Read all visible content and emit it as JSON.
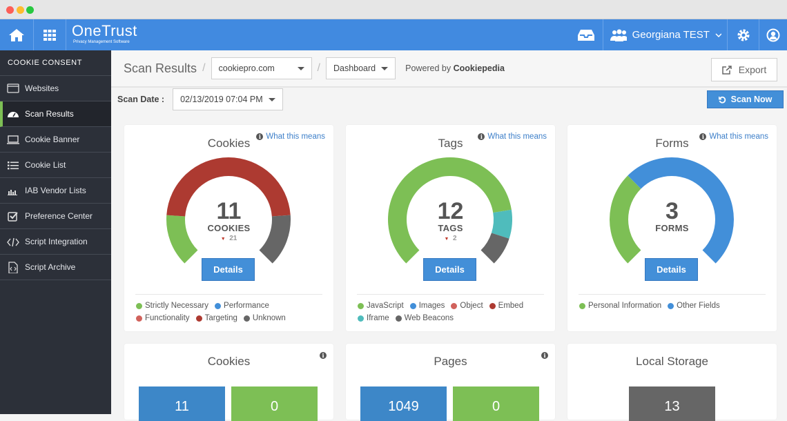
{
  "header": {
    "brand": "OneTrust",
    "brand_sub": "Privacy Management Software",
    "user": "Georgiana TEST"
  },
  "sidebar": {
    "section": "COOKIE CONSENT",
    "items": [
      {
        "label": "Websites",
        "icon": "browser-window-icon"
      },
      {
        "label": "Scan Results",
        "icon": "dashboard-gauge-icon",
        "active": true
      },
      {
        "label": "Cookie Banner",
        "icon": "laptop-icon"
      },
      {
        "label": "Cookie List",
        "icon": "list-icon"
      },
      {
        "label": "IAB Vendor Lists",
        "icon": "bar-chart-icon"
      },
      {
        "label": "Preference Center",
        "icon": "checkbox-icon"
      },
      {
        "label": "Script Integration",
        "icon": "code-icon"
      },
      {
        "label": "Script Archive",
        "icon": "file-code-icon"
      }
    ]
  },
  "toolbar": {
    "title": "Scan Results",
    "sep": "/",
    "domain": "cookiepro.com",
    "view": "Dashboard",
    "powered_prefix": "Powered by ",
    "powered_brand": "Cookiepedia",
    "export": "Export"
  },
  "scan": {
    "label": "Scan Date :",
    "date": "02/13/2019 07:04 PM",
    "scan_now": "Scan Now"
  },
  "what_label": "What this means",
  "details_label": "Details",
  "colors": {
    "green": "#7dbf55",
    "blue": "#428fd9",
    "red": "#ad3a31",
    "lightred": "#d1625c",
    "gray": "#666666",
    "teal": "#4fbcbc"
  },
  "gauges": [
    {
      "title": "Cookies",
      "count": "11",
      "unit": "COOKIES",
      "delta": "21",
      "segments": [
        {
          "label": "Strictly Necessary",
          "value": 2,
          "color": "#7dbf55"
        },
        {
          "label": "Performance",
          "value": 0,
          "color": "#428fd9"
        },
        {
          "label": "Functionality",
          "value": 0,
          "color": "#d1625c"
        },
        {
          "label": "Targeting",
          "value": 7,
          "color": "#ad3a31"
        },
        {
          "label": "Unknown",
          "value": 2,
          "color": "#666666"
        }
      ]
    },
    {
      "title": "Tags",
      "count": "12",
      "unit": "TAGS",
      "delta": "2",
      "segments": [
        {
          "label": "JavaScript",
          "value": 9.6,
          "color": "#7dbf55"
        },
        {
          "label": "Images",
          "value": 0,
          "color": "#428fd9"
        },
        {
          "label": "Object",
          "value": 0,
          "color": "#d1625c"
        },
        {
          "label": "Embed",
          "value": 0,
          "color": "#ad3a31"
        },
        {
          "label": "Iframe",
          "value": 1.2,
          "color": "#4fbcbc"
        },
        {
          "label": "Web Beacons",
          "value": 1.2,
          "color": "#666666"
        }
      ]
    },
    {
      "title": "Forms",
      "count": "3",
      "unit": "FORMS",
      "delta": null,
      "segments": [
        {
          "label": "Personal Information",
          "value": 1,
          "color": "#7dbf55"
        },
        {
          "label": "Other Fields",
          "value": 2,
          "color": "#428fd9"
        }
      ]
    }
  ],
  "summary": [
    {
      "title": "Cookies",
      "tiles": [
        {
          "value": "11",
          "color": "#3d87c8"
        },
        {
          "value": "0",
          "color": "#7dbf55"
        }
      ],
      "info": true
    },
    {
      "title": "Pages",
      "tiles": [
        {
          "value": "1049",
          "color": "#3d87c8"
        },
        {
          "value": "0",
          "color": "#7dbf55"
        }
      ],
      "info": true
    },
    {
      "title": "Local Storage",
      "tiles": [
        {
          "value": "13",
          "color": "#666666"
        }
      ],
      "info": false
    }
  ]
}
